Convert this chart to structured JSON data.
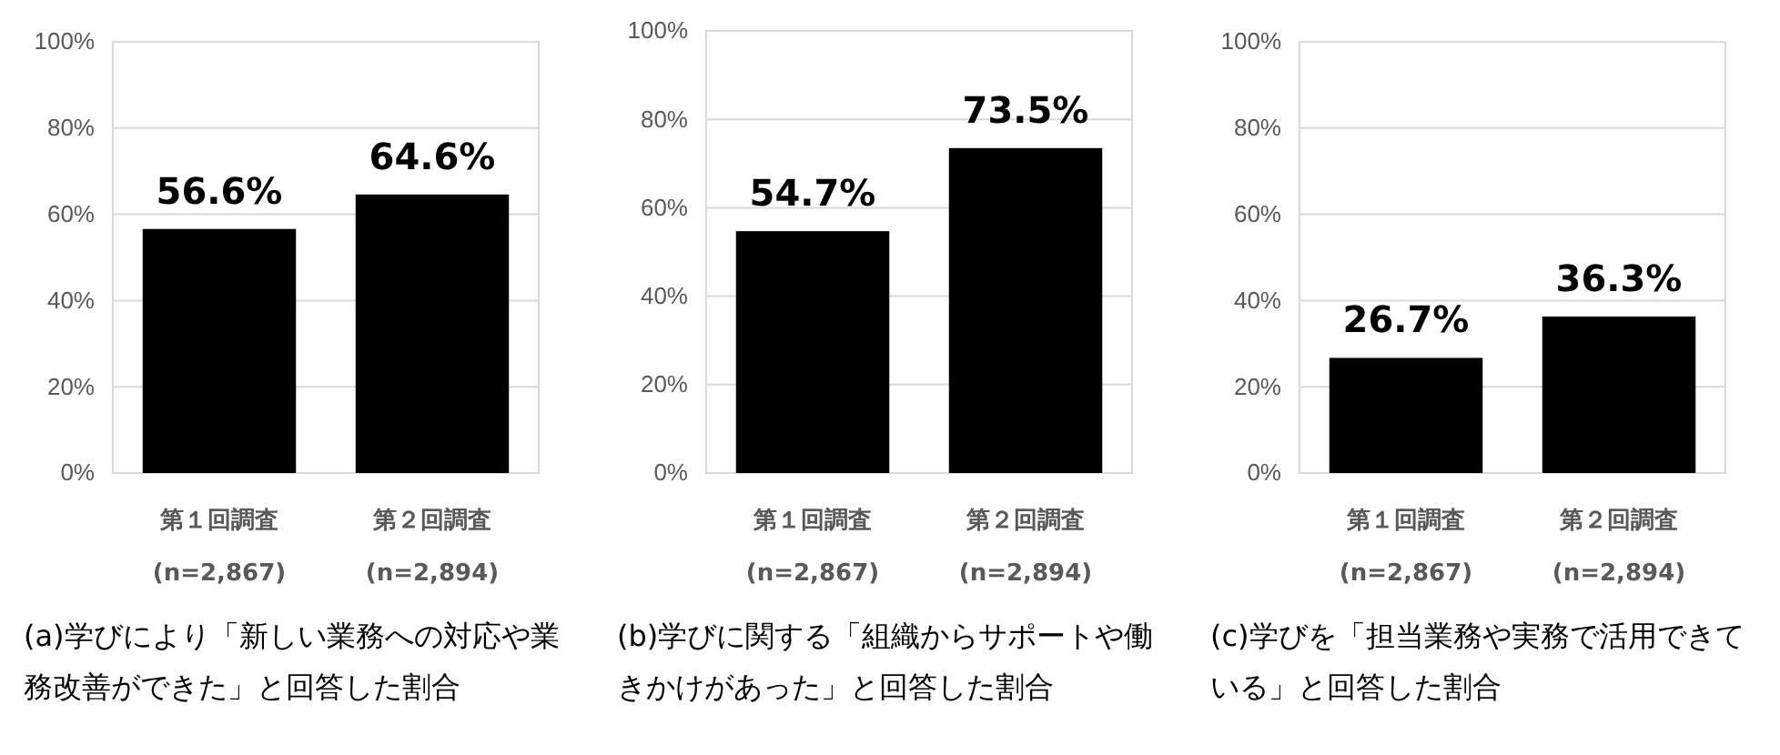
{
  "chart_data": [
    {
      "type": "bar",
      "title": "(a)学びにより「新しい業務への対応や業務改善ができた」と回答した割合",
      "categories": [
        "第１回調査\n(n=2,867)",
        "第２回調査\n(n=2,894)"
      ],
      "values": [
        56.6,
        64.6
      ],
      "value_labels": [
        "56.6%",
        "64.6%"
      ],
      "color": "#000000",
      "ylim": [
        0,
        100
      ],
      "yticks": [
        {
          "value": 0,
          "label": "0%"
        },
        {
          "value": 20,
          "label": "20%"
        },
        {
          "value": 40,
          "label": "40%"
        },
        {
          "value": 60,
          "label": "60%"
        },
        {
          "value": 80,
          "label": "80%"
        },
        {
          "value": 100,
          "label": "100%"
        }
      ],
      "grid": "y"
    },
    {
      "type": "bar",
      "title": "(b)学びに関する「組織からサポートや働きかけがあった」と回答した割合",
      "categories": [
        "第１回調査\n(n=2,867)",
        "第２回調査\n(n=2,894)"
      ],
      "values": [
        54.7,
        73.5
      ],
      "value_labels": [
        "54.7%",
        "73.5%"
      ],
      "color": "#000000",
      "ylim": [
        0,
        100
      ],
      "yticks": [
        {
          "value": 0,
          "label": "0%"
        },
        {
          "value": 20,
          "label": "20%"
        },
        {
          "value": 40,
          "label": "40%"
        },
        {
          "value": 60,
          "label": "60%"
        },
        {
          "value": 80,
          "label": "80%"
        },
        {
          "value": 100,
          "label": "100%"
        }
      ],
      "grid": "y"
    },
    {
      "type": "bar",
      "title": "(c)学びを「担当業務や実務で活用できている」と回答した割合",
      "categories": [
        "第１回調査\n(n=2,867)",
        "第２回調査\n(n=2,894)"
      ],
      "values": [
        26.7,
        36.3
      ],
      "value_labels": [
        "26.7%",
        "36.3%"
      ],
      "color": "#000000",
      "ylim": [
        0,
        100
      ],
      "yticks": [
        {
          "value": 0,
          "label": "0%"
        },
        {
          "value": 20,
          "label": "20%"
        },
        {
          "value": 40,
          "label": "40%"
        },
        {
          "value": 60,
          "label": "60%"
        },
        {
          "value": 80,
          "label": "80%"
        },
        {
          "value": 100,
          "label": "100%"
        }
      ],
      "grid": "y"
    }
  ]
}
